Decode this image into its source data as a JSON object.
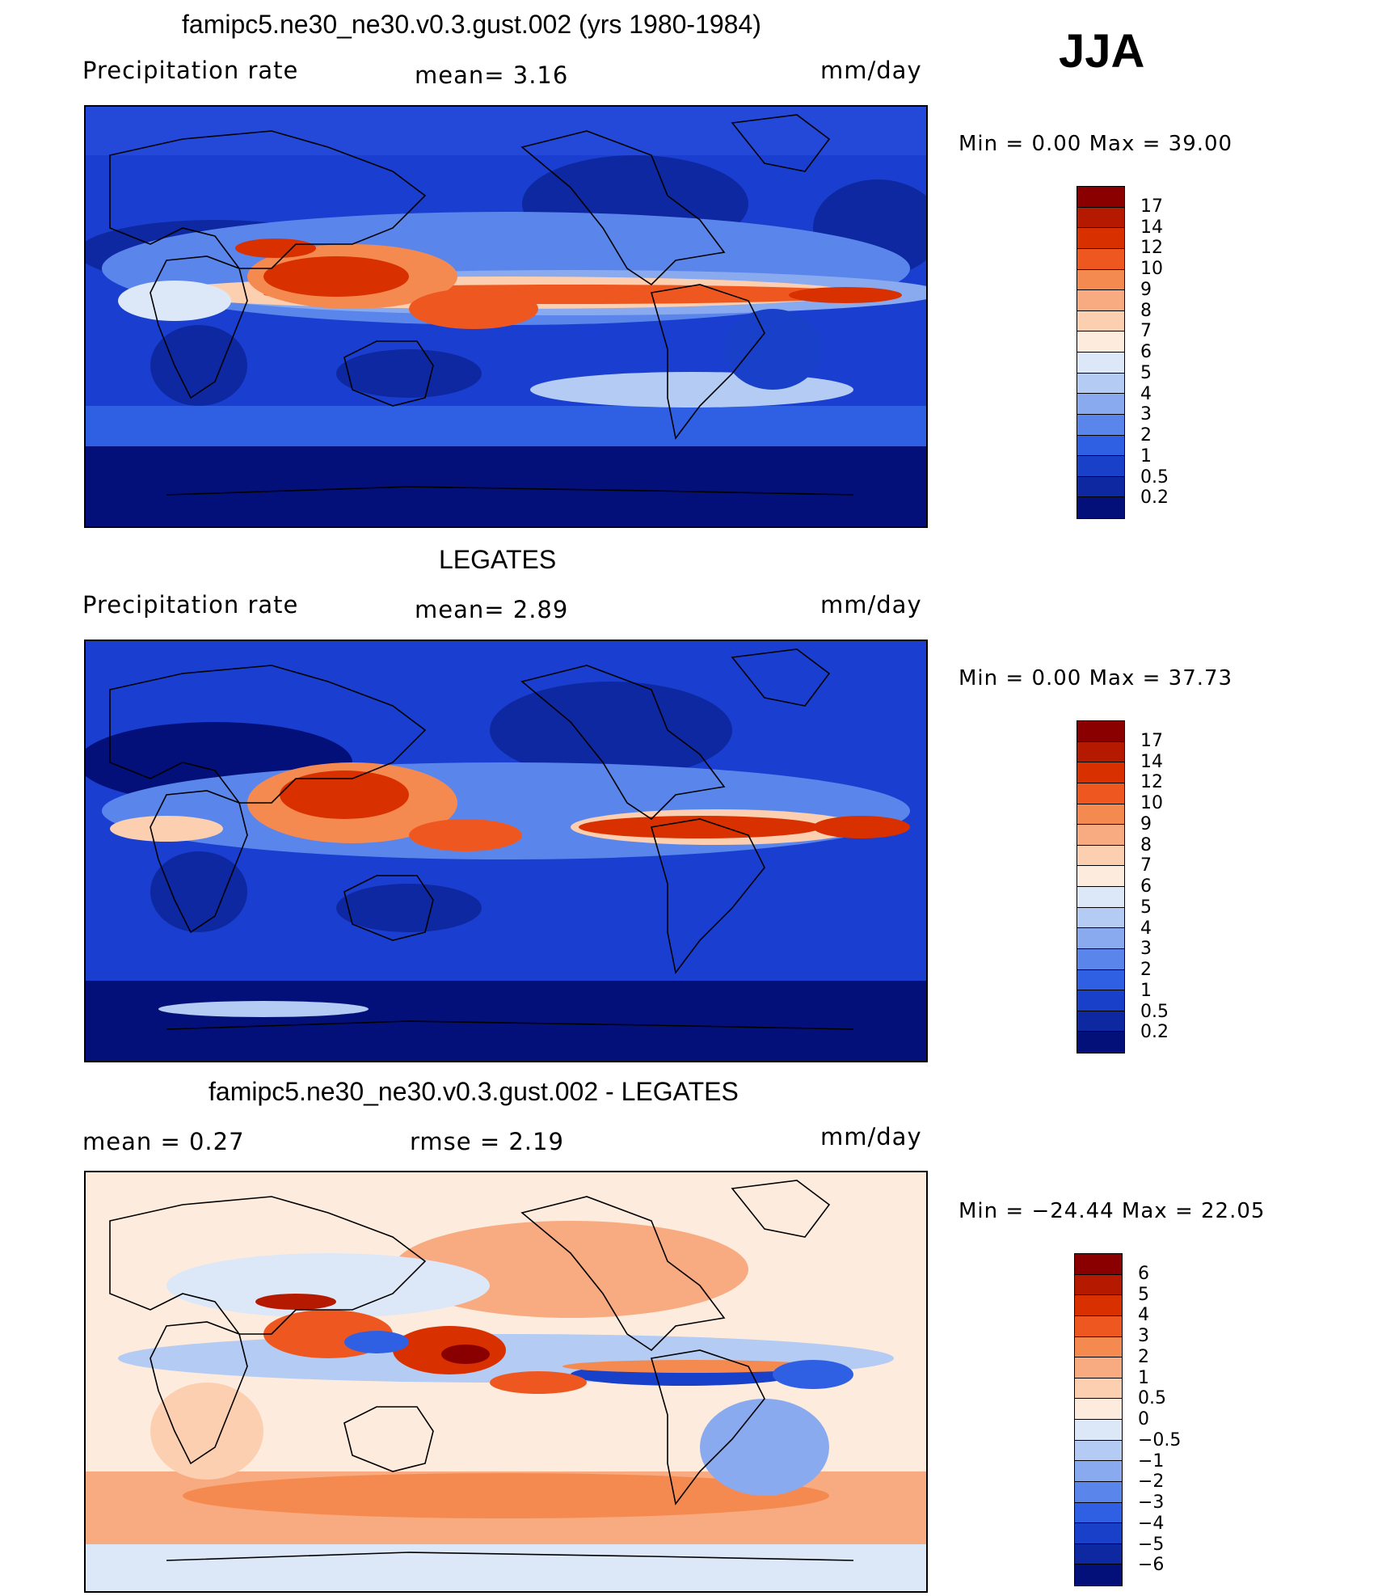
{
  "season": "JJA",
  "panels": [
    {
      "title": "famipc5.ne30_ne30.v0.3.gust.002 (yrs 1980-1984)",
      "left_label": "Precipitation  rate",
      "center_label": "mean=    3.16",
      "units": "mm/day",
      "minmax": "Min  =     0.00  Max  =     39.00",
      "colorbar_labels": [
        "17",
        "14",
        "12",
        "10",
        "9",
        "8",
        "7",
        "6",
        "5",
        "4",
        "3",
        "2",
        "1",
        "0.5",
        "0.2"
      ],
      "colorbar_colors": [
        "#8a0000",
        "#b51a00",
        "#d93000",
        "#ee5820",
        "#f58a50",
        "#f8aa80",
        "#fbcfb0",
        "#fdecdd",
        "#dce8f8",
        "#b4cbf3",
        "#8aaaf0",
        "#5a86ec",
        "#2f5fe2",
        "#1840c8",
        "#0d28a0",
        "#03107a"
      ]
    },
    {
      "title": "LEGATES",
      "left_label": "Precipitation  rate",
      "center_label": "mean=    2.89",
      "units": "mm/day",
      "minmax": "Min  =     0.00  Max  =     37.73",
      "colorbar_labels": [
        "17",
        "14",
        "12",
        "10",
        "9",
        "8",
        "7",
        "6",
        "5",
        "4",
        "3",
        "2",
        "1",
        "0.5",
        "0.2"
      ],
      "colorbar_colors": [
        "#8a0000",
        "#b51a00",
        "#d93000",
        "#ee5820",
        "#f58a50",
        "#f8aa80",
        "#fbcfb0",
        "#fdecdd",
        "#dce8f8",
        "#b4cbf3",
        "#8aaaf0",
        "#5a86ec",
        "#2f5fe2",
        "#1840c8",
        "#0d28a0",
        "#03107a"
      ]
    },
    {
      "title": "famipc5.ne30_ne30.v0.3.gust.002 - LEGATES",
      "left_label": "mean  =     0.27",
      "center_label": "rmse  =     2.19",
      "units": "mm/day",
      "minmax": "Min  = −24.44  Max  =     22.05",
      "colorbar_labels": [
        "6",
        "5",
        "4",
        "3",
        "2",
        "1",
        "0.5",
        "0",
        "−0.5",
        "−1",
        "−2",
        "−3",
        "−4",
        "−5",
        "−6"
      ],
      "colorbar_colors": [
        "#8a0000",
        "#b51a00",
        "#d93000",
        "#ee5820",
        "#f58a50",
        "#f8aa80",
        "#fbcfb0",
        "#fdecdd",
        "#dce8f8",
        "#b4cbf3",
        "#8aaaf0",
        "#5a86ec",
        "#2f5fe2",
        "#1840c8",
        "#0d28a0",
        "#03107a"
      ]
    }
  ]
}
